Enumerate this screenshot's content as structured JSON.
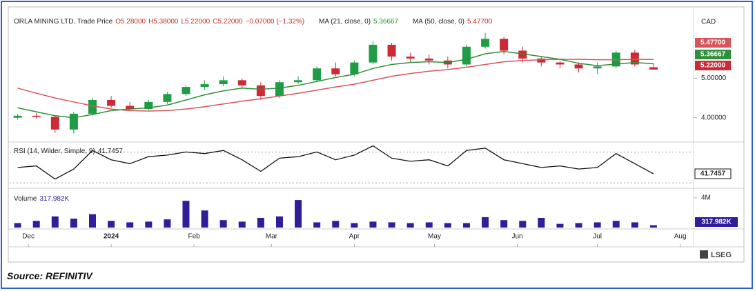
{
  "header": {
    "title": "ORLA MINING LTD, Trade Price",
    "open": "O5.28000",
    "high": "H5.38000",
    "low": "L5.22000",
    "close": "C5.22000",
    "change": "−0.07000 (−1.32%)"
  },
  "chart_data": {
    "type": "candlestick",
    "currency": "CAD",
    "x": [
      -4,
      3,
      10,
      17,
      24,
      31,
      38,
      45,
      52,
      59,
      66,
      73,
      80,
      87,
      94,
      101,
      108,
      115,
      122,
      129,
      136,
      143,
      150,
      157,
      164,
      171,
      178,
      185,
      192,
      199,
      206,
      213,
      220,
      227,
      234
    ],
    "open": [
      4.0,
      4.05,
      4.02,
      3.7,
      4.1,
      4.45,
      4.3,
      4.22,
      4.4,
      4.6,
      4.78,
      4.85,
      4.95,
      4.82,
      4.55,
      4.9,
      4.95,
      5.25,
      5.1,
      5.4,
      5.85,
      5.55,
      5.5,
      5.45,
      5.35,
      5.8,
      6.0,
      5.7,
      5.5,
      5.4,
      5.35,
      5.25,
      5.3,
      5.65,
      5.28
    ],
    "high": [
      4.1,
      4.12,
      4.05,
      4.15,
      4.5,
      4.55,
      4.4,
      4.45,
      4.65,
      4.82,
      4.95,
      5.05,
      5.0,
      4.9,
      4.95,
      5.05,
      5.3,
      5.4,
      5.45,
      5.95,
      5.9,
      5.65,
      5.6,
      5.55,
      5.85,
      6.15,
      6.05,
      5.8,
      5.55,
      5.45,
      5.4,
      5.4,
      5.7,
      5.72,
      5.38
    ],
    "low": [
      3.95,
      3.98,
      3.62,
      3.6,
      4.05,
      4.25,
      4.18,
      4.2,
      4.35,
      4.55,
      4.7,
      4.8,
      4.75,
      4.45,
      4.5,
      4.85,
      4.9,
      5.05,
      5.05,
      5.35,
      5.45,
      5.4,
      5.35,
      5.25,
      5.3,
      5.75,
      5.6,
      5.4,
      5.3,
      5.25,
      5.15,
      5.1,
      5.25,
      5.3,
      5.22
    ],
    "close": [
      4.05,
      4.02,
      3.7,
      4.1,
      4.45,
      4.3,
      4.22,
      4.4,
      4.6,
      4.78,
      4.85,
      4.95,
      4.82,
      4.55,
      4.9,
      4.95,
      5.25,
      5.1,
      5.4,
      5.85,
      5.55,
      5.5,
      5.45,
      5.35,
      5.8,
      6.0,
      5.7,
      5.5,
      5.4,
      5.35,
      5.25,
      5.3,
      5.65,
      5.35,
      5.22
    ],
    "up_color": "#1f9d45",
    "down_color": "#cc2a36",
    "last_label": "5.22000",
    "xlim": [
      -7,
      249
    ],
    "xticks": [
      {
        "value": 0,
        "label": "Dec"
      },
      {
        "value": 31,
        "label": "2024"
      },
      {
        "value": 62,
        "label": "Feb"
      },
      {
        "value": 91,
        "label": "Mar"
      },
      {
        "value": 122,
        "label": "Apr"
      },
      {
        "value": 152,
        "label": "May"
      },
      {
        "value": 183,
        "label": "Jun"
      },
      {
        "value": 213,
        "label": "Jul"
      },
      {
        "value": 244,
        "label": "Aug"
      }
    ],
    "ylim": [
      3.4,
      6.6
    ],
    "yticks": [
      {
        "value": 5,
        "label": "5.00000"
      },
      {
        "value": 4,
        "label": "4.00000"
      }
    ],
    "series": [
      {
        "name": "MA (50, close, 0)",
        "value_label": "5.47700",
        "color": "#d9545a",
        "values": [
          4.75,
          4.62,
          4.5,
          4.4,
          4.3,
          4.22,
          4.18,
          4.17,
          4.18,
          4.22,
          4.28,
          4.35,
          4.42,
          4.48,
          4.55,
          4.62,
          4.7,
          4.78,
          4.85,
          4.95,
          5.05,
          5.12,
          5.18,
          5.22,
          5.28,
          5.35,
          5.42,
          5.45,
          5.47,
          5.48,
          5.48,
          5.47,
          5.47,
          5.48,
          5.477
        ]
      },
      {
        "name": "MA (21, close, 0)",
        "value_label": "5.36667",
        "color": "#2f8f3a",
        "values": [
          4.25,
          4.15,
          4.05,
          4.0,
          4.08,
          4.18,
          4.22,
          4.25,
          4.32,
          4.45,
          4.58,
          4.68,
          4.75,
          4.72,
          4.75,
          4.82,
          4.92,
          5.02,
          5.1,
          5.25,
          5.35,
          5.4,
          5.42,
          5.4,
          5.48,
          5.62,
          5.68,
          5.62,
          5.55,
          5.48,
          5.38,
          5.32,
          5.36,
          5.4,
          5.36667
        ]
      }
    ],
    "rsi": {
      "name": "RSI (14, Wilder, Simple, 9)",
      "value_label": "41.7457",
      "color": "#111111",
      "values": [
        50,
        52,
        35,
        48,
        72,
        60,
        55,
        64,
        66,
        70,
        68,
        72,
        60,
        45,
        62,
        64,
        70,
        60,
        66,
        78,
        62,
        58,
        60,
        52,
        72,
        75,
        60,
        55,
        50,
        52,
        48,
        50,
        68,
        55,
        41.7457
      ],
      "ylim": [
        24,
        82
      ],
      "levels": [
        30,
        70
      ]
    },
    "volume": {
      "name": "Volume",
      "value_label": "317.982K",
      "color": "#2f1d99",
      "values": [
        600000,
        900000,
        1500000,
        1200000,
        1800000,
        900000,
        700000,
        800000,
        1100000,
        3600000,
        2300000,
        1000000,
        800000,
        1300000,
        1500000,
        3700000,
        700000,
        900000,
        600000,
        800000,
        700000,
        600000,
        700000,
        600000,
        600000,
        1400000,
        1000000,
        900000,
        1300000,
        500000,
        600000,
        700000,
        900000,
        700000,
        317982
      ],
      "ylim": [
        0,
        5100000
      ],
      "yticks": [
        {
          "value": 4000000,
          "label": "4M"
        }
      ]
    }
  },
  "source": "Source: REFINITIV",
  "logo": "LSEG"
}
